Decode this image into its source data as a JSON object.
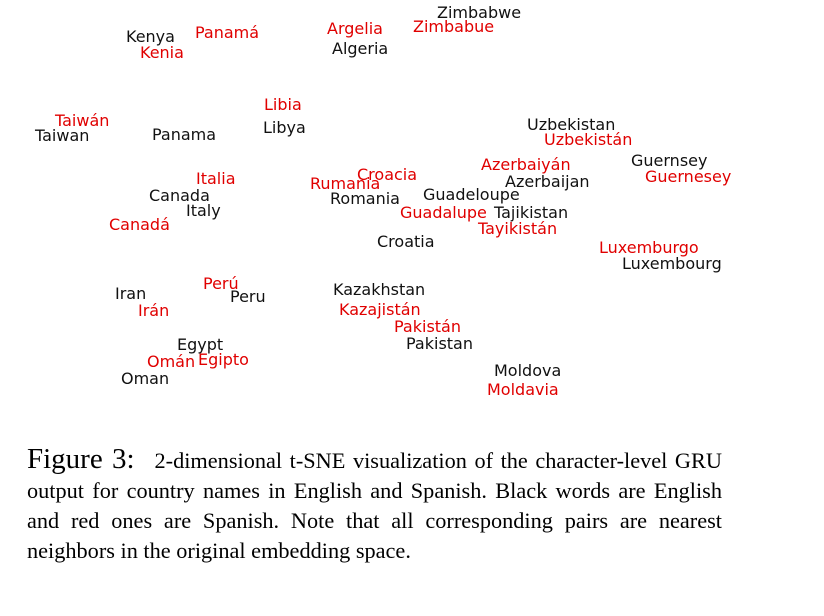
{
  "colors": {
    "english": "#111111",
    "spanish": "#e00000"
  },
  "legend_note": "Black = English, Red = Spanish",
  "chart_data": {
    "type": "scatter",
    "description_source": "caption",
    "points": [
      {
        "label": "Zimbabwe",
        "lang": "english"
      },
      {
        "label": "Zimbabue",
        "lang": "spanish"
      },
      {
        "label": "Argelia",
        "lang": "spanish"
      },
      {
        "label": "Algeria",
        "lang": "english"
      },
      {
        "label": "Kenya",
        "lang": "english"
      },
      {
        "label": "Kenia",
        "lang": "spanish"
      },
      {
        "label": "Panamá",
        "lang": "spanish"
      },
      {
        "label": "Libia",
        "lang": "spanish"
      },
      {
        "label": "Libya",
        "lang": "english"
      },
      {
        "label": "Taiwán",
        "lang": "spanish"
      },
      {
        "label": "Taiwan",
        "lang": "english"
      },
      {
        "label": "Panama",
        "lang": "english"
      },
      {
        "label": "Uzbekistan",
        "lang": "english"
      },
      {
        "label": "Uzbekistán",
        "lang": "spanish"
      },
      {
        "label": "Guernsey",
        "lang": "english"
      },
      {
        "label": "Guernesey",
        "lang": "spanish"
      },
      {
        "label": "Azerbaiyán",
        "lang": "spanish"
      },
      {
        "label": "Azerbaijan",
        "lang": "english"
      },
      {
        "label": "Italia",
        "lang": "spanish"
      },
      {
        "label": "Canada",
        "lang": "english"
      },
      {
        "label": "Italy",
        "lang": "english"
      },
      {
        "label": "Canadá",
        "lang": "spanish"
      },
      {
        "label": "Rumania",
        "lang": "spanish"
      },
      {
        "label": "Croacia",
        "lang": "spanish"
      },
      {
        "label": "Romania",
        "lang": "english"
      },
      {
        "label": "Guadeloupe",
        "lang": "english"
      },
      {
        "label": "Guadalupe",
        "lang": "spanish"
      },
      {
        "label": "Tajikistan",
        "lang": "english"
      },
      {
        "label": "Tayikistán",
        "lang": "spanish"
      },
      {
        "label": "Croatia",
        "lang": "english"
      },
      {
        "label": "Luxemburgo",
        "lang": "spanish"
      },
      {
        "label": "Luxembourg",
        "lang": "english"
      },
      {
        "label": "Perú",
        "lang": "spanish"
      },
      {
        "label": "Iran",
        "lang": "english"
      },
      {
        "label": "Peru",
        "lang": "english"
      },
      {
        "label": "Irán",
        "lang": "spanish"
      },
      {
        "label": "Kazakhstan",
        "lang": "english"
      },
      {
        "label": "Kazajistán",
        "lang": "spanish"
      },
      {
        "label": "Pakistán",
        "lang": "spanish"
      },
      {
        "label": "Pakistan",
        "lang": "english"
      },
      {
        "label": "Egypt",
        "lang": "english"
      },
      {
        "label": "Omán",
        "lang": "spanish"
      },
      {
        "label": "Egipto",
        "lang": "spanish"
      },
      {
        "label": "Oman",
        "lang": "english"
      },
      {
        "label": "Moldova",
        "lang": "english"
      },
      {
        "label": "Moldavia",
        "lang": "spanish"
      }
    ]
  },
  "caption": {
    "label": "Figure 3:",
    "text": "2-dimensional t-SNE visualization of the character-level GRU output for country names in English and Spanish. Black words are English and red ones are Spanish. Note that all corresponding pairs are nearest neighbors in the original embedding space."
  }
}
